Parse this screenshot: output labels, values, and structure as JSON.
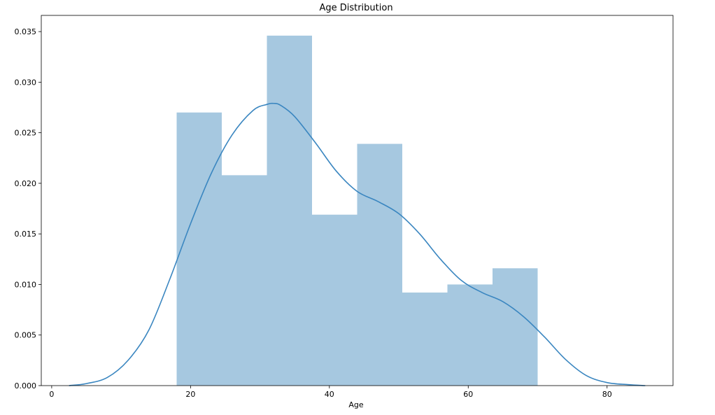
{
  "chart_data": {
    "type": "bar",
    "title": "Age Distribution",
    "xlabel": "Age",
    "ylabel": "",
    "xlim": [
      -1.5,
      89.5
    ],
    "ylim": [
      0,
      0.0366
    ],
    "xticks": [
      "0",
      "20",
      "40",
      "60",
      "80"
    ],
    "yticks": [
      "0.000",
      "0.005",
      "0.010",
      "0.015",
      "0.020",
      "0.025",
      "0.030",
      "0.035"
    ],
    "grid": false,
    "histogram": {
      "bin_edges": [
        18,
        24.5,
        31,
        37.5,
        44,
        50.5,
        57,
        63.5,
        70
      ],
      "densities": [
        0.027,
        0.0208,
        0.0346,
        0.0169,
        0.0239,
        0.0092,
        0.01,
        0.0116
      ],
      "color": "#a6c8e0"
    },
    "kde": {
      "color": "#3a86c0",
      "x": [
        2.5,
        5,
        8,
        11,
        14,
        17,
        20,
        23,
        26,
        29,
        31,
        32,
        33,
        35,
        38,
        41,
        44,
        47,
        50,
        53,
        56,
        59,
        62,
        65,
        68,
        71,
        74,
        77,
        80,
        83,
        85.5
      ],
      "y": [
        0.0,
        0.0002,
        0.0008,
        0.0025,
        0.0055,
        0.0105,
        0.016,
        0.021,
        0.0248,
        0.0272,
        0.0278,
        0.0279,
        0.0277,
        0.0266,
        0.024,
        0.0212,
        0.0192,
        0.0182,
        0.017,
        0.015,
        0.0125,
        0.0104,
        0.0092,
        0.0083,
        0.0068,
        0.0048,
        0.0026,
        0.001,
        0.0003,
        0.0001,
        0.0
      ]
    }
  }
}
